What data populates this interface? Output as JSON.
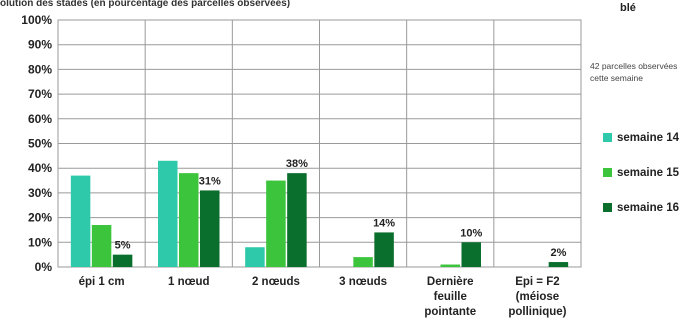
{
  "header": {
    "title": "olution des stades (en pourcentage des parcelles observées)",
    "crop": "blé",
    "note": "42 parcelles observées cette semaine"
  },
  "colors": {
    "semaine_14": "#2ec8aa",
    "semaine_15": "#3cc43c",
    "semaine_16": "#0a6e2c",
    "grid": "#9a9a9a"
  },
  "chart_data": {
    "type": "bar",
    "title": "olution des stades (en pourcentage des parcelles observées)",
    "categories": [
      [
        "épi 1 cm"
      ],
      [
        "1 nœud"
      ],
      [
        "2 nœuds"
      ],
      [
        "3 nœuds"
      ],
      [
        "Dernière",
        "feuille",
        "pointante"
      ],
      [
        "Epi = F2",
        "(méiose",
        "pollinique)"
      ]
    ],
    "series": [
      {
        "name": "semaine 14",
        "values": [
          37,
          43,
          8,
          0,
          0,
          0
        ]
      },
      {
        "name": "semaine 15",
        "values": [
          17,
          38,
          35,
          4,
          1,
          0
        ]
      },
      {
        "name": "semaine 16",
        "values": [
          5,
          31,
          38,
          14,
          10,
          2
        ]
      }
    ],
    "data_labels": [
      "5%",
      "31%",
      "38%",
      "14%",
      "10%",
      "2%"
    ],
    "y_ticks": [
      "0%",
      "10%",
      "20%",
      "30%",
      "40%",
      "50%",
      "60%",
      "70%",
      "80%",
      "90%",
      "100%"
    ],
    "ylim": [
      0,
      100
    ],
    "grid": true,
    "legend_position": "right"
  }
}
